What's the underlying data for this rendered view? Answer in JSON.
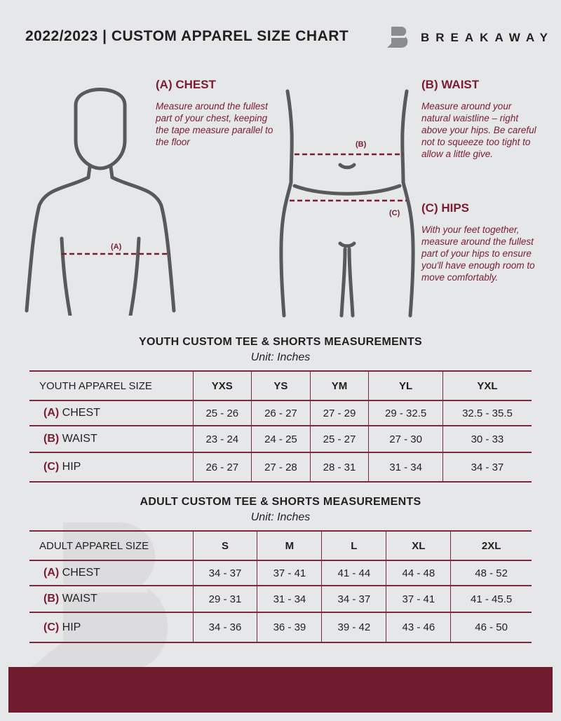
{
  "header": {
    "title": "2022/2023  |  CUSTOM APPAREL SIZE CHART",
    "brand": "BREAKAWAY"
  },
  "chest": {
    "heading": "(A) CHEST",
    "description": "Measure around the fullest part of your chest, keeping the tape measure parallel to the floor",
    "marker": "(A)"
  },
  "waist": {
    "heading": "(B) WAIST",
    "description": "Measure around your natural waistline – right above your hips. Be careful not to squeeze too tight to allow a little give.",
    "marker": "(B)"
  },
  "hips": {
    "heading": "(C) HIPS",
    "description": "With your feet together, measure around the fullest part of your hips to ensure you'll have enough room to move comfortably.",
    "marker": "(C)"
  },
  "youth": {
    "title": "YOUTH CUSTOM TEE & SHORTS MEASUREMENTS",
    "unit": "Unit: Inches",
    "header": "YOUTH APPAREL SIZE",
    "sizes": [
      "YXS",
      "YS",
      "YM",
      "YL",
      "YXL"
    ],
    "rows": [
      {
        "code": "(A)",
        "name": "CHEST",
        "values": [
          "25 - 26",
          "26 - 27",
          "27 - 29",
          "29 - 32.5",
          "32.5 - 35.5"
        ]
      },
      {
        "code": "(B)",
        "name": "WAIST",
        "values": [
          "23 - 24",
          "24 - 25",
          "25 - 27",
          "27 - 30",
          "30 - 33"
        ]
      },
      {
        "code": "(C)",
        "name": "HIP",
        "values": [
          "26 - 27",
          "27 - 28",
          "28 - 31",
          "31 - 34",
          "34 - 37"
        ]
      }
    ]
  },
  "adult": {
    "title": "ADULT CUSTOM TEE & SHORTS MEASUREMENTS",
    "unit": "Unit: Inches",
    "header": "ADULT APPAREL SIZE",
    "sizes": [
      "S",
      "M",
      "L",
      "XL",
      "2XL"
    ],
    "rows": [
      {
        "code": "(A)",
        "name": "CHEST",
        "values": [
          "34 - 37",
          "37 - 41",
          "41 - 44",
          "44 - 48",
          "48 - 52"
        ]
      },
      {
        "code": "(B)",
        "name": "WAIST",
        "values": [
          "29 - 31",
          "31 - 34",
          "34 - 37",
          "37 - 41",
          "41 - 45.5"
        ]
      },
      {
        "code": "(C)",
        "name": "HIP",
        "values": [
          "34 - 36",
          "36 - 39",
          "39 - 42",
          "43 - 46",
          "46 - 50"
        ]
      }
    ]
  },
  "colors": {
    "accent": "#7a1c33",
    "footer": "#6f1a2d",
    "background": "#e6e7e9"
  }
}
